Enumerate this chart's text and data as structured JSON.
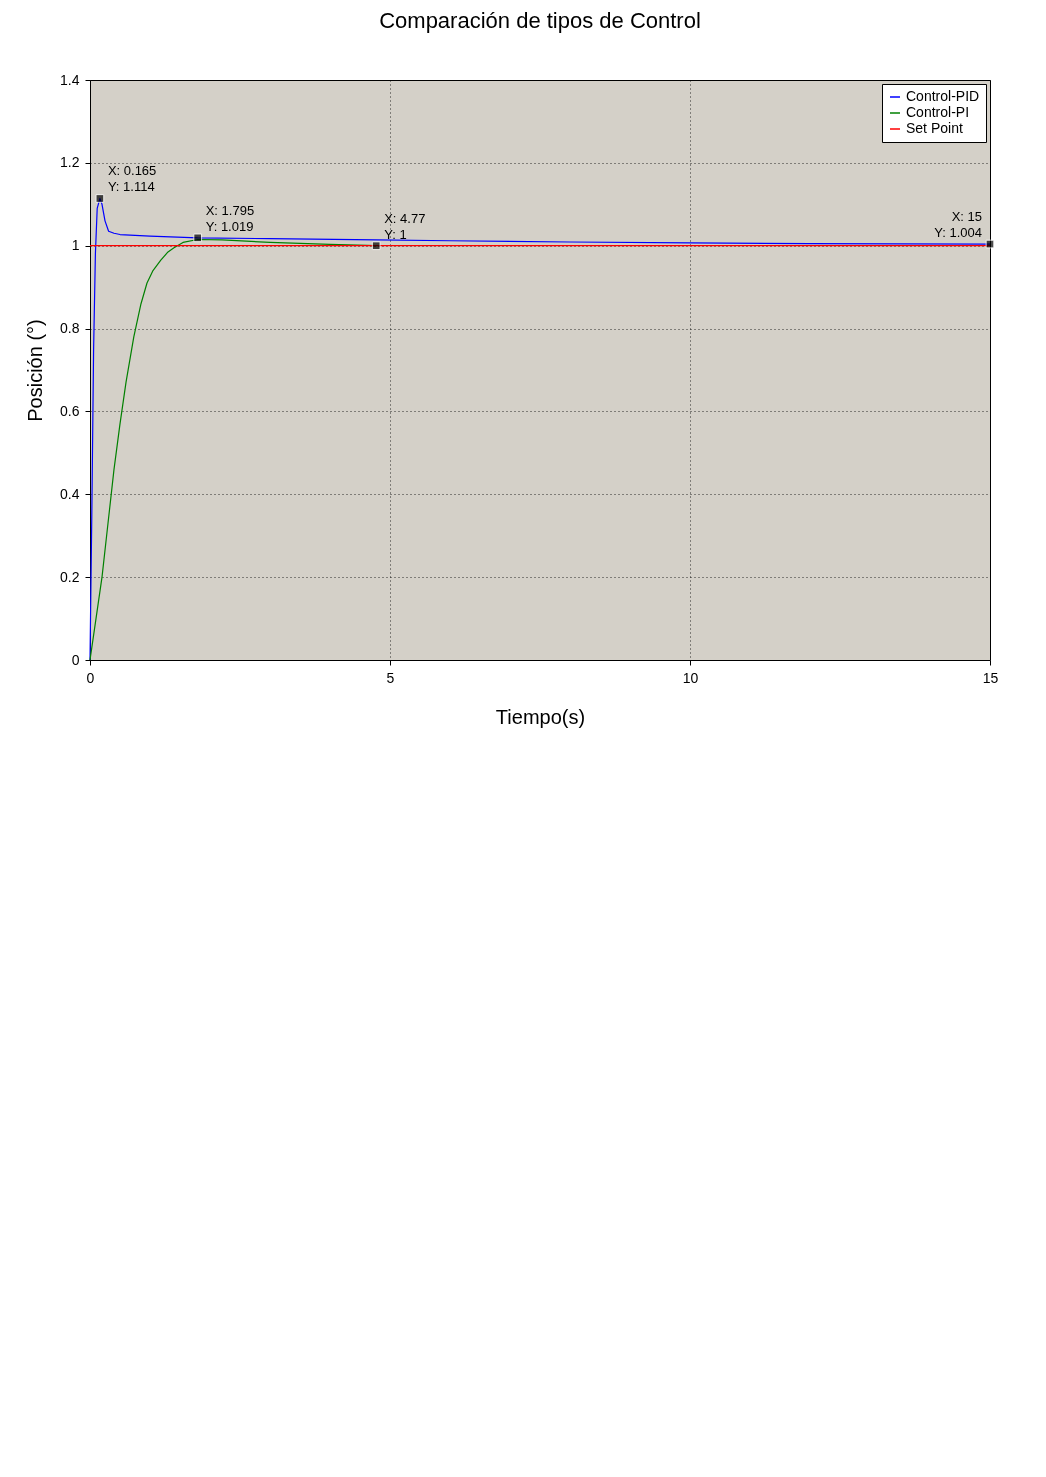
{
  "chart_data": {
    "type": "line",
    "title": "Comparación de tipos de Control",
    "xlabel": "Tiempo(s)",
    "ylabel": "Posición (°)",
    "xlim": [
      0,
      15
    ],
    "ylim": [
      0,
      1.4
    ],
    "xticks": [
      0,
      5,
      10,
      15
    ],
    "yticks": [
      0,
      0.2,
      0.4,
      0.6,
      0.8,
      1,
      1.2,
      1.4
    ],
    "grid": true,
    "legend": "top right",
    "marker": "none",
    "line_style": "solid",
    "series": [
      {
        "name": "Control-PID",
        "color": "#0000ff",
        "x": [
          0,
          0.03,
          0.06,
          0.09,
          0.12,
          0.165,
          0.2,
          0.25,
          0.31,
          0.4,
          0.5,
          1,
          1.795,
          3,
          4.77,
          6,
          8,
          10,
          12,
          15
        ],
        "values": [
          0,
          0.35,
          0.75,
          0.98,
          1.09,
          1.114,
          1.1,
          1.06,
          1.035,
          1.03,
          1.027,
          1.023,
          1.019,
          1.017,
          1.014,
          1.012,
          1.009,
          1.007,
          1.005,
          1.004
        ]
      },
      {
        "name": "Control-PI",
        "color": "#008000",
        "x": [
          0,
          0.1,
          0.2,
          0.3,
          0.4,
          0.5,
          0.6,
          0.73,
          0.85,
          0.95,
          1.05,
          1.18,
          1.3,
          1.4,
          1.55,
          1.795,
          2.2,
          3,
          4,
          4.77
        ],
        "values": [
          0,
          0.1,
          0.2,
          0.33,
          0.46,
          0.57,
          0.67,
          0.78,
          0.86,
          0.91,
          0.94,
          0.965,
          0.985,
          0.995,
          1.008,
          1.015,
          1.014,
          1.008,
          1.003,
          1
        ]
      },
      {
        "name": "Set Point",
        "color": "#ff0000",
        "x": [
          0,
          15
        ],
        "values": [
          1,
          1
        ]
      }
    ],
    "annotations": [
      {
        "text": "X: 0.165\nY: 1.114",
        "x": 0.165,
        "y": 1.114
      },
      {
        "text": "X: 1.795\nY: 1.019",
        "x": 1.795,
        "y": 1.019
      },
      {
        "text": "X: 4.77\nY: 1",
        "x": 4.77,
        "y": 1
      },
      {
        "text": "X: 15\nY: 1.004",
        "x": 15,
        "y": 1.004
      }
    ]
  }
}
